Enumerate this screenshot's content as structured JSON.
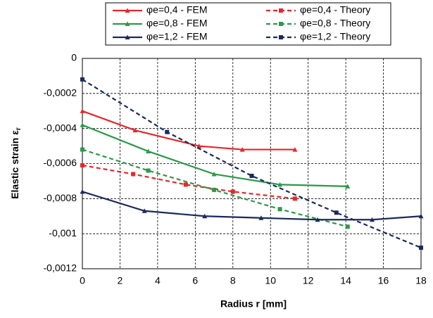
{
  "chart_data": {
    "type": "line",
    "x_label": "Radius r [mm]",
    "y_label": "Elastic strain ε",
    "y_label_sub": "r",
    "xlim": [
      0,
      18
    ],
    "xticks": [
      0,
      2,
      4,
      6,
      8,
      10,
      12,
      14,
      16,
      18
    ],
    "ylim": [
      -0.0012,
      0
    ],
    "yticks": [
      {
        "value": -0.0012,
        "label": "-0,0012"
      },
      {
        "value": -0.001,
        "label": "-0,001"
      },
      {
        "value": -0.0008,
        "label": "-0,0008"
      },
      {
        "value": -0.0006,
        "label": "-0,0006"
      },
      {
        "value": -0.0004,
        "label": "-0,0004"
      },
      {
        "value": -0.0002,
        "label": "-0,0002"
      },
      0
    ],
    "grid": true,
    "series": [
      {
        "name": "φe=0,4 - FEM",
        "color": "#e8262a",
        "style": "solid",
        "marker": "triangle",
        "x": [
          0,
          2.8,
          6.2,
          8.5,
          11.3
        ],
        "values": [
          -0.0003,
          -0.00041,
          -0.0005,
          -0.00052,
          -0.00052
        ]
      },
      {
        "name": "φe=0,4 - Theory",
        "color": "#e8262a",
        "style": "dashed",
        "marker": "square",
        "x": [
          0,
          2.7,
          5.5,
          8,
          11.3
        ],
        "values": [
          -0.00061,
          -0.00066,
          -0.00072,
          -0.00076,
          -0.0008
        ]
      },
      {
        "name": "φe=0,8 - FEM",
        "color": "#2a9a48",
        "style": "solid",
        "marker": "triangle",
        "x": [
          0,
          3.5,
          7,
          10.5,
          14.1
        ],
        "values": [
          -0.00038,
          -0.00053,
          -0.00066,
          -0.00072,
          -0.00073
        ]
      },
      {
        "name": "φe=0,8 - Theory",
        "color": "#2a9a48",
        "style": "dashed",
        "marker": "square",
        "x": [
          0,
          3.5,
          7,
          10.5,
          14.1
        ],
        "values": [
          -0.00052,
          -0.00064,
          -0.00075,
          -0.00086,
          -0.00096
        ]
      },
      {
        "name": "φe=1,2 - FEM",
        "color": "#1a2a5e",
        "style": "solid",
        "marker": "triangle",
        "x": [
          0,
          3.3,
          6.5,
          9.5,
          12.5,
          15.4,
          18
        ],
        "values": [
          -0.00076,
          -0.00087,
          -0.0009,
          -0.00091,
          -0.00092,
          -0.00092,
          -0.0009
        ]
      },
      {
        "name": "φe=1,2 - Theory",
        "color": "#1a2a5e",
        "style": "dashed",
        "marker": "square",
        "x": [
          0,
          4.5,
          9,
          13.5,
          18
        ],
        "values": [
          -0.00012,
          -0.00042,
          -0.00067,
          -0.00088,
          -0.00108
        ]
      }
    ]
  }
}
